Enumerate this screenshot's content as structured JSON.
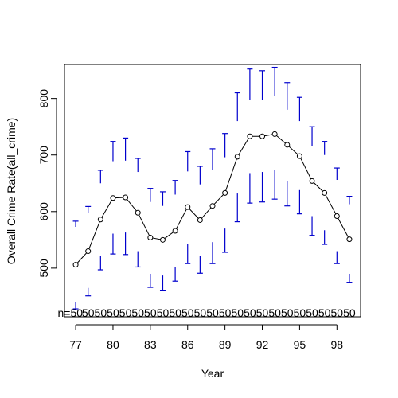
{
  "chart_data": {
    "type": "line",
    "title": "",
    "xlabel": "Year",
    "ylabel": "Overall Crime Rate(all_crime)",
    "x": [
      77,
      78,
      79,
      80,
      81,
      82,
      83,
      84,
      85,
      86,
      87,
      88,
      89,
      90,
      91,
      92,
      93,
      94,
      95,
      96,
      97,
      98,
      99
    ],
    "x_tick_labels": [
      "77",
      "80",
      "83",
      "86",
      "89",
      "92",
      "95",
      "98"
    ],
    "y_ticks": [
      500,
      600,
      700,
      800
    ],
    "xlim": [
      76.1,
      99.9
    ],
    "ylim": [
      414,
      860
    ],
    "series": [
      {
        "values": [
          506,
          530,
          586,
          624,
          625,
          598,
          554,
          550,
          566,
          608,
          585,
          610,
          633,
          697,
          733,
          733,
          737,
          718,
          698,
          654,
          633,
          592,
          551
        ]
      }
    ],
    "error_bars": {
      "upper": [
        [
          573,
          583
        ],
        [
          597,
          609
        ],
        [
          650,
          673
        ],
        [
          689,
          724
        ],
        [
          690,
          730
        ],
        [
          670,
          694
        ],
        [
          617,
          641
        ],
        [
          610,
          635
        ],
        [
          630,
          655
        ],
        [
          671,
          706
        ],
        [
          648,
          680
        ],
        [
          674,
          711
        ],
        [
          696,
          738
        ],
        [
          760,
          810
        ],
        [
          798,
          852
        ],
        [
          798,
          849
        ],
        [
          804,
          855
        ],
        [
          780,
          828
        ],
        [
          760,
          802
        ],
        [
          716,
          750
        ],
        [
          700,
          724
        ],
        [
          656,
          677
        ],
        [
          613,
          627
        ]
      ],
      "lower": [
        [
          428,
          440
        ],
        [
          451,
          465
        ],
        [
          497,
          522
        ],
        [
          525,
          561
        ],
        [
          524,
          563
        ],
        [
          502,
          530
        ],
        [
          466,
          490
        ],
        [
          461,
          487
        ],
        [
          477,
          502
        ],
        [
          508,
          543
        ],
        [
          491,
          522
        ],
        [
          508,
          546
        ],
        [
          528,
          570
        ],
        [
          582,
          632
        ],
        [
          615,
          668
        ],
        [
          617,
          670
        ],
        [
          622,
          673
        ],
        [
          610,
          654
        ],
        [
          596,
          638
        ],
        [
          558,
          592
        ],
        [
          542,
          567
        ],
        [
          508,
          530
        ],
        [
          475,
          490
        ]
      ],
      "color": "#0000cd"
    },
    "n_labels": [
      "n=50",
      "50",
      "50",
      "50",
      "50",
      "50",
      "50",
      "50",
      "50",
      "50",
      "50",
      "50",
      "50",
      "50",
      "50",
      "50",
      "50",
      "50",
      "50",
      "50",
      "50",
      "50",
      "50"
    ],
    "line_color": "#000000",
    "grid": false,
    "legend": "none"
  }
}
